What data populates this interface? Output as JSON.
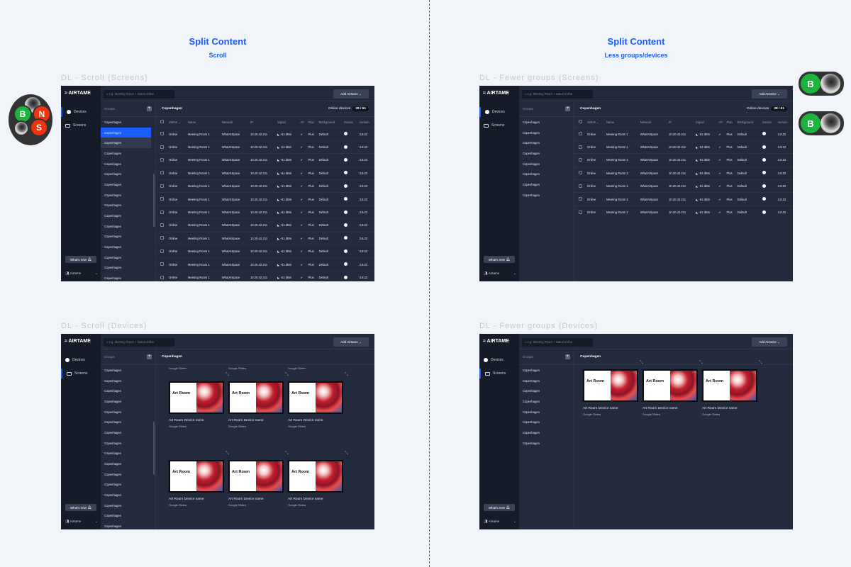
{
  "columns": [
    {
      "heading": "Split Content",
      "subheading": "Scroll"
    },
    {
      "heading": "Split Content",
      "subheading": "Less groups/devices"
    }
  ],
  "app": {
    "logo": "≈ AIRTAME",
    "nav": [
      {
        "label": "Devices",
        "icon": "devices-icon"
      },
      {
        "label": "Screens",
        "icon": "screens-icon"
      }
    ],
    "whats_new": "What's new",
    "account": "Airtame",
    "search_placeholder": "e.g. Meeting Room + status:online",
    "add_button": "Add Airtame",
    "groups_label": "Groups",
    "group_title": "Copenhagen",
    "online_label": "Online devices",
    "online_count": "28 / 61"
  },
  "table": {
    "headers": [
      "",
      "Status ⌄",
      "Name",
      "Network",
      "IP",
      "Signal",
      "AP",
      "Plan",
      "Background",
      "Device",
      "Version"
    ],
    "row": {
      "status": "Online",
      "name": "Meeting Room 1",
      "network": "WhatAISpace",
      "ip": "10.20.42.211",
      "signal": "-51 dBm",
      "ap": "✔",
      "plan": "Plus",
      "background": "Default",
      "version": "3.8.22"
    }
  },
  "device_card": {
    "title": "Art Room",
    "name": "Art Room Device name",
    "source": "Google Slides"
  },
  "frames": [
    {
      "label": "DL - Scroll (Screens)",
      "view": "screens",
      "groups": [
        "Copenhagen",
        "Copenhagen",
        "Copenhagen",
        "Copenhagen",
        "Copenhagen",
        "Copenhagen",
        "Copenhagen",
        "Copenhagen",
        "Copenhagen",
        "Copenhagen",
        "Copenhagen",
        "Copenhagen",
        "Copenhagen",
        "Copenhagen",
        "Copenhagen",
        "Copenhagen",
        "Copenhagen"
      ],
      "rows": 12,
      "scroll": true
    },
    {
      "label": "DL - Fewer groups (Screens)",
      "view": "screens",
      "groups": [
        "Copenhagen",
        "Copenhagen",
        "Copenhagen",
        "Copenhagen",
        "Copenhagen",
        "Copenhagen",
        "Copenhagen",
        "Copenhagen"
      ],
      "rows": 7,
      "scroll": false
    },
    {
      "label": "DL - Scroll (Devices)",
      "view": "devices",
      "groups": [
        "Copenhagen",
        "Copenhagen",
        "Copenhagen",
        "Copenhagen",
        "Copenhagen",
        "Copenhagen",
        "Copenhagen",
        "Copenhagen",
        "Copenhagen",
        "Copenhagen",
        "Copenhagen",
        "Copenhagen",
        "Copenhagen",
        "Copenhagen",
        "Copenhagen",
        "Copenhagen",
        "Copenhagen",
        "Copenhagen"
      ],
      "card_rows": 2,
      "scroll": true
    },
    {
      "label": "DL - Fewer groups (Devices)",
      "view": "devices",
      "groups": [
        "Copenhagen",
        "Copenhagen",
        "Copenhagen",
        "Copenhagen",
        "Copenhagen",
        "Copenhagen",
        "Copenhagen",
        "Copenhagen"
      ],
      "card_rows": 1,
      "scroll": false
    }
  ],
  "collaborators": [
    "B",
    "N",
    "S"
  ],
  "colors": {
    "accent": "#1a5cff",
    "frame_bg": "#232a3d",
    "sidebar_bg": "#161b29",
    "avatar_green": "#1db33f",
    "avatar_red": "#f0330f"
  }
}
